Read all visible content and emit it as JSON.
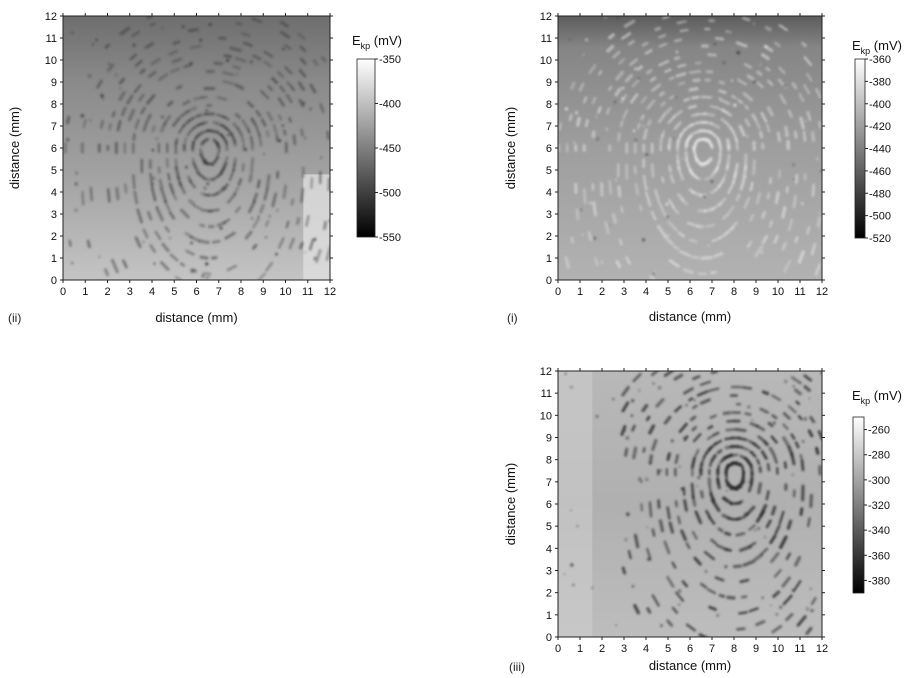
{
  "chart_data": [
    {
      "panel": "(ii)",
      "type": "heatmap",
      "xlabel": "distance (mm)",
      "ylabel": "distance (mm)",
      "xlim": [
        0,
        12
      ],
      "ylim": [
        0,
        12
      ],
      "x_ticks": [
        "0",
        "1",
        "2",
        "3",
        "4",
        "5",
        "6",
        "7",
        "8",
        "9",
        "10",
        "11",
        "12"
      ],
      "y_ticks": [
        "0",
        "1",
        "2",
        "3",
        "4",
        "5",
        "6",
        "7",
        "8",
        "9",
        "10",
        "11",
        "12"
      ],
      "colorbar": {
        "title_main": "E",
        "title_sub": "kp",
        "title_unit": " (mV)",
        "ticks": [
          "-350",
          "-400",
          "-450",
          "-500",
          "-550"
        ],
        "range": [
          -550,
          -350
        ]
      }
    },
    {
      "panel": "(i)",
      "type": "heatmap",
      "xlabel": "distance (mm)",
      "ylabel": "distance (mm)",
      "xlim": [
        0,
        12
      ],
      "ylim": [
        0,
        12
      ],
      "x_ticks": [
        "0",
        "1",
        "2",
        "3",
        "4",
        "5",
        "6",
        "7",
        "8",
        "9",
        "10",
        "11",
        "12"
      ],
      "y_ticks": [
        "0",
        "1",
        "2",
        "3",
        "4",
        "5",
        "6",
        "7",
        "8",
        "9",
        "10",
        "11",
        "12"
      ],
      "colorbar": {
        "title_main": "E",
        "title_sub": "kp",
        "title_unit": " (mV)",
        "ticks": [
          "-360",
          "-380",
          "-400",
          "-420",
          "-440",
          "-460",
          "-480",
          "-500",
          "-520"
        ],
        "range": [
          -520,
          -360
        ]
      }
    },
    {
      "panel": "(iii)",
      "type": "heatmap",
      "xlabel": "distance (mm)",
      "ylabel": "distance (mm)",
      "xlim": [
        0,
        12
      ],
      "ylim": [
        0,
        12
      ],
      "x_ticks": [
        "0",
        "1",
        "2",
        "3",
        "4",
        "5",
        "6",
        "7",
        "8",
        "9",
        "10",
        "11",
        "12"
      ],
      "y_ticks": [
        "0",
        "1",
        "2",
        "3",
        "4",
        "5",
        "6",
        "7",
        "8",
        "9",
        "10",
        "11",
        "12"
      ],
      "colorbar": {
        "title_main": "E",
        "title_sub": "kp",
        "title_unit": " (mV)",
        "ticks": [
          "-260",
          "-280",
          "-300",
          "-320",
          "-340",
          "-360",
          "-380"
        ],
        "range": [
          -390,
          -250
        ]
      }
    }
  ]
}
